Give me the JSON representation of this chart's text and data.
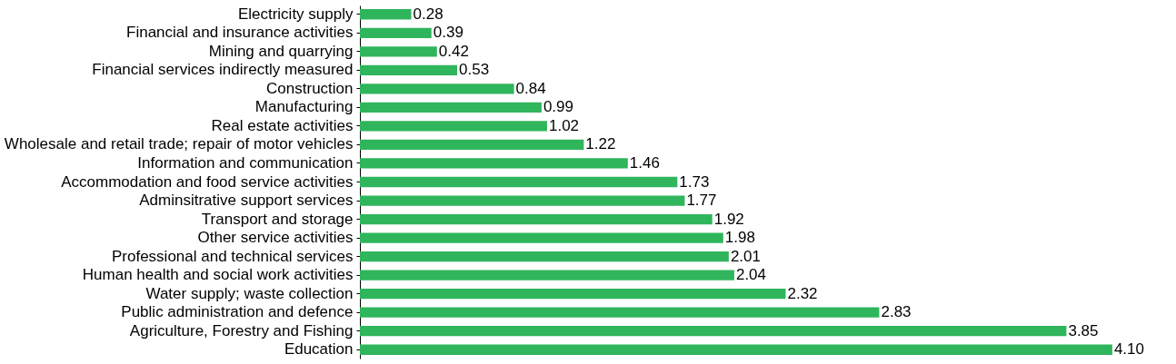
{
  "chart_data": {
    "type": "bar",
    "orientation": "horizontal",
    "value_labels": [
      "0.28",
      "0.39",
      "0.42",
      "0.53",
      "0.84",
      "0.99",
      "1.02",
      "1.22",
      "1.46",
      "1.73",
      "1.77",
      "1.92",
      "1.98",
      "2.01",
      "2.04",
      "2.32",
      "2.83",
      "3.85",
      "4.10"
    ],
    "color": "#2fb55c",
    "categories": [
      "Electricity supply",
      "Financial and insurance activities",
      "Mining and quarrying",
      "Financial services indirectly measured",
      "Construction",
      "Manufacturing",
      "Real estate activities",
      "Wholesale and retail trade; repair of motor vehicles",
      "Information and communication",
      "Accommodation and food service activities",
      "Adminsitrative support services",
      "Transport and storage",
      "Other service activities",
      "Professional and technical services",
      "Human health and social work activities",
      "Water supply; waste collection",
      "Public administration and defence",
      "Agriculture, Forestry and Fishing",
      "Education"
    ],
    "values": [
      0.28,
      0.39,
      0.42,
      0.53,
      0.84,
      0.99,
      1.02,
      1.22,
      1.46,
      1.73,
      1.77,
      1.92,
      1.98,
      2.01,
      2.04,
      2.32,
      2.83,
      3.85,
      4.1
    ]
  }
}
